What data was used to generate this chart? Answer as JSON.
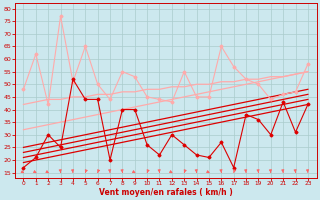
{
  "xlabel": "Vent moyen/en rafales ( km/h )",
  "xlabel_color": "#cc0000",
  "bg_color": "#cce8ee",
  "grid_color": "#aacccc",
  "axis_color": "#cc0000",
  "tick_color": "#cc0000",
  "x_ticks": [
    0,
    1,
    2,
    3,
    4,
    5,
    6,
    7,
    8,
    9,
    10,
    11,
    12,
    13,
    14,
    15,
    16,
    17,
    18,
    19,
    20,
    21,
    22,
    23
  ],
  "ylim": [
    13,
    82
  ],
  "yticks": [
    15,
    20,
    25,
    30,
    35,
    40,
    45,
    50,
    55,
    60,
    65,
    70,
    75,
    80
  ],
  "line_mean_jagged": {
    "y": [
      17,
      21,
      30,
      25,
      52,
      44,
      44,
      20,
      40,
      40,
      26,
      22,
      30,
      26,
      22,
      21,
      27,
      17,
      38,
      36,
      30,
      43,
      31,
      42
    ],
    "color": "#dd0000",
    "lw": 0.8,
    "marker": "D",
    "ms": 1.5
  },
  "line_gust_jagged": {
    "y": [
      48,
      62,
      42,
      77,
      51,
      65,
      50,
      44,
      55,
      53,
      45,
      44,
      43,
      55,
      45,
      45,
      65,
      57,
      52,
      50,
      44,
      46,
      47,
      58
    ],
    "color": "#ffaaaa",
    "lw": 0.8,
    "marker": "D",
    "ms": 1.5
  },
  "trend_lines_red": [
    [
      19,
      20,
      21,
      22,
      23,
      24,
      25,
      26,
      27,
      28,
      29,
      30,
      31,
      32,
      33,
      34,
      35,
      36,
      37,
      38,
      39,
      40,
      41,
      42
    ],
    [
      21,
      22,
      23,
      24,
      25,
      26,
      27,
      28,
      29,
      30,
      31,
      32,
      33,
      34,
      35,
      36,
      37,
      38,
      39,
      40,
      41,
      42,
      43,
      44
    ],
    [
      23,
      24,
      25,
      26,
      27,
      28,
      29,
      30,
      31,
      32,
      33,
      34,
      35,
      36,
      37,
      38,
      39,
      40,
      41,
      42,
      43,
      44,
      45,
      46
    ],
    [
      25,
      26,
      27,
      28,
      29,
      30,
      31,
      32,
      33,
      34,
      35,
      36,
      37,
      38,
      39,
      40,
      41,
      42,
      43,
      44,
      45,
      46,
      47,
      48
    ]
  ],
  "trend_lines_pink": [
    [
      32,
      33,
      34,
      35,
      36,
      37,
      38,
      39,
      40,
      41,
      42,
      43,
      44,
      45,
      46,
      47,
      48,
      49,
      50,
      51,
      52,
      53,
      54,
      55
    ],
    [
      42,
      43,
      44,
      44,
      45,
      45,
      46,
      46,
      47,
      47,
      48,
      48,
      49,
      49,
      50,
      50,
      51,
      51,
      52,
      52,
      53,
      53,
      54,
      55
    ]
  ],
  "trend_color_red": "#dd0000",
  "trend_color_pink": "#ffaaaa",
  "trend_lw": 0.9,
  "arrows": {
    "angles_deg": [
      50,
      50,
      50,
      5,
      5,
      -15,
      -15,
      5,
      5,
      50,
      -15,
      5,
      50,
      -15,
      5,
      50,
      5,
      -15,
      5,
      5,
      5,
      5,
      5,
      5
    ],
    "color": "#ff6666"
  }
}
